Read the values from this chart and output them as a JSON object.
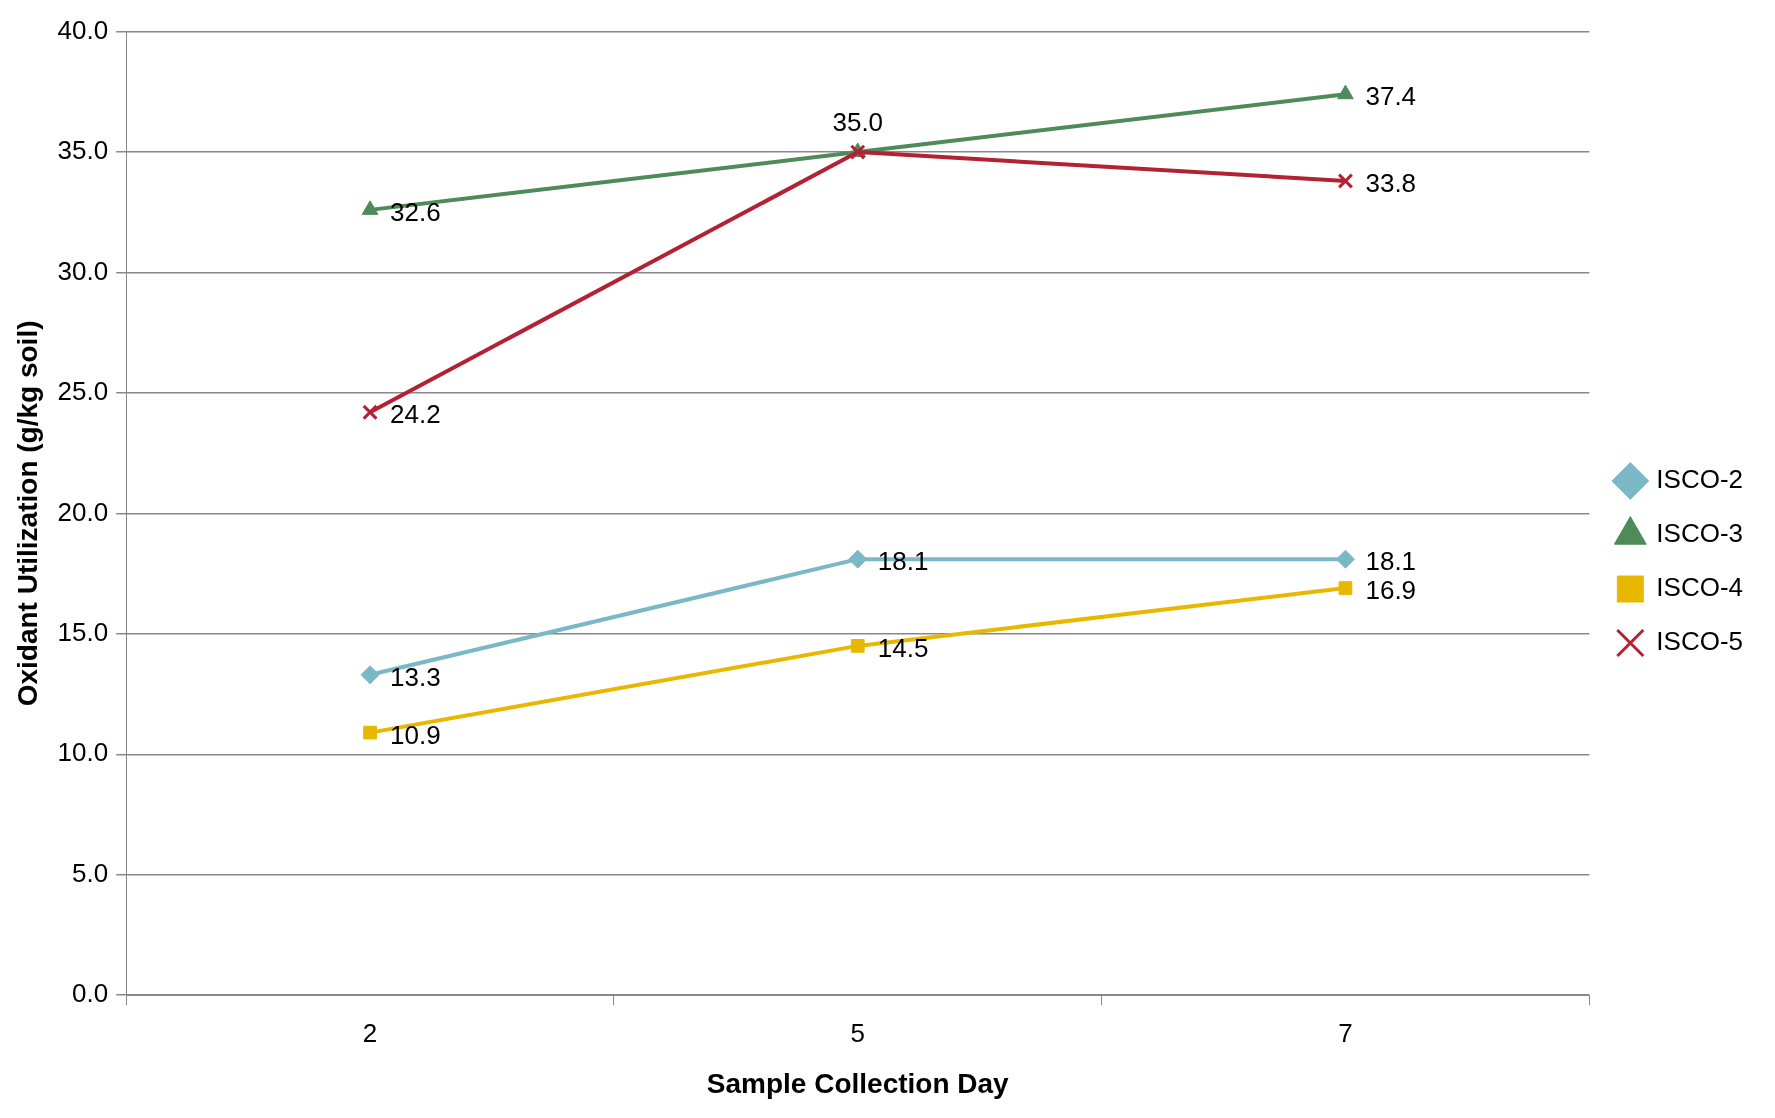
{
  "chart_data": {
    "type": "line",
    "xlabel": "Sample Collection Day",
    "ylabel": "Oxidant Utilization (g/kg soil)",
    "categories": [
      "2",
      "5",
      "7"
    ],
    "series": [
      {
        "name": "ISCO-2",
        "color": "#7ab8c8",
        "marker": "diamond",
        "values": [
          13.3,
          18.1,
          18.1
        ],
        "value_labels": [
          "13.3",
          "18.1",
          "18.1"
        ]
      },
      {
        "name": "ISCO-3",
        "color": "#4e8a5a",
        "marker": "triangle",
        "values": [
          32.6,
          35.0,
          37.4
        ],
        "value_labels": [
          "32.6",
          "35.0",
          "37.4"
        ]
      },
      {
        "name": "ISCO-4",
        "color": "#e8b800",
        "marker": "square",
        "values": [
          10.9,
          14.5,
          16.9
        ],
        "value_labels": [
          "10.9",
          "14.5",
          "16.9"
        ]
      },
      {
        "name": "ISCO-5",
        "color": "#b22234",
        "marker": "cross",
        "values": [
          24.2,
          35.0,
          33.8
        ],
        "value_labels": [
          "24.2",
          null,
          "33.8"
        ]
      }
    ],
    "ylim": [
      0,
      40
    ],
    "yticks": [
      {
        "value": 0,
        "label": "0.0"
      },
      {
        "value": 5,
        "label": "5.0"
      },
      {
        "value": 10,
        "label": "10.0"
      },
      {
        "value": 15,
        "label": "15.0"
      },
      {
        "value": 20,
        "label": "20.0"
      },
      {
        "value": 25,
        "label": "25.0"
      },
      {
        "value": 30,
        "label": "30.0"
      },
      {
        "value": 35,
        "label": "35.0"
      },
      {
        "value": 40,
        "label": "40.0"
      }
    ],
    "grid": "y",
    "legend": "right",
    "line_style": "solid"
  }
}
